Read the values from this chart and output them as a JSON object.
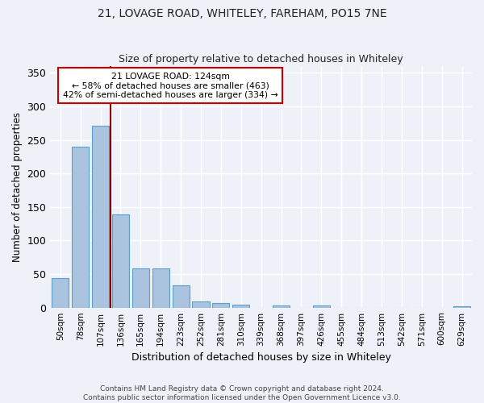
{
  "title1": "21, LOVAGE ROAD, WHITELEY, FAREHAM, PO15 7NE",
  "title2": "Size of property relative to detached houses in Whiteley",
  "xlabel": "Distribution of detached houses by size in Whiteley",
  "ylabel": "Number of detached properties",
  "categories": [
    "50sqm",
    "78sqm",
    "107sqm",
    "136sqm",
    "165sqm",
    "194sqm",
    "223sqm",
    "252sqm",
    "281sqm",
    "310sqm",
    "339sqm",
    "368sqm",
    "397sqm",
    "426sqm",
    "455sqm",
    "484sqm",
    "513sqm",
    "542sqm",
    "571sqm",
    "600sqm",
    "629sqm"
  ],
  "values": [
    44,
    240,
    271,
    139,
    58,
    58,
    33,
    9,
    7,
    5,
    0,
    3,
    0,
    3,
    0,
    0,
    0,
    0,
    0,
    0,
    2
  ],
  "bar_color": "#aac4e0",
  "bar_edge_color": "#5a9ec9",
  "bg_color": "#eef2f8",
  "grid_color": "#ffffff",
  "vline_x_index": 2.5,
  "vline_color": "#8b0000",
  "annotation_text": "21 LOVAGE ROAD: 124sqm\n← 58% of detached houses are smaller (463)\n42% of semi-detached houses are larger (334) →",
  "annotation_box_color": "#ffffff",
  "annotation_box_edge": "#cc0000",
  "ylim": [
    0,
    360
  ],
  "yticks": [
    0,
    50,
    100,
    150,
    200,
    250,
    300,
    350
  ],
  "footer": "Contains HM Land Registry data © Crown copyright and database right 2024.\nContains public sector information licensed under the Open Government Licence v3.0.",
  "title1_fontsize": 10,
  "title2_fontsize": 9,
  "ylabel_fontsize": 8.5,
  "xlabel_fontsize": 9,
  "tick_fontsize": 7.5,
  "footer_fontsize": 6.5
}
